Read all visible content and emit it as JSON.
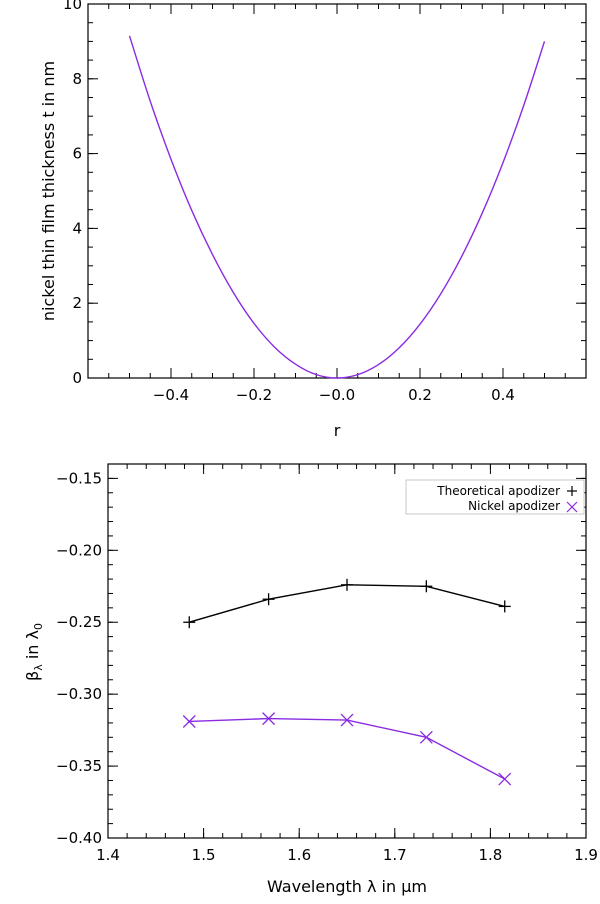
{
  "chart_data": [
    {
      "type": "line",
      "title": "",
      "xlabel": "r",
      "ylabel": "nickel thin film thickness t in nm",
      "xlim": [
        -0.6,
        0.6
      ],
      "ylim": [
        0,
        10
      ],
      "x_ticks": [
        -0.4,
        -0.2,
        0.0,
        0.2,
        0.4
      ],
      "x_tick_labels": [
        "−0.4",
        "−0.2",
        "−0.0",
        "0.2",
        "0.4"
      ],
      "y_ticks": [
        0,
        2,
        4,
        6,
        8,
        10
      ],
      "y_tick_labels": [
        "0",
        "2",
        "4",
        "6",
        "8",
        "10"
      ],
      "grid": false,
      "series": [
        {
          "color": "#8a2be2",
          "x": [
            -0.5,
            -0.45,
            -0.4,
            -0.35,
            -0.3,
            -0.25,
            -0.2,
            -0.15,
            -0.1,
            -0.05,
            0.0,
            0.05,
            0.1,
            0.15,
            0.2,
            0.25,
            0.3,
            0.35,
            0.4,
            0.45,
            0.5
          ],
          "y": [
            9.15,
            7.4,
            5.85,
            4.48,
            3.3,
            2.29,
            1.46,
            0.82,
            0.37,
            0.09,
            0.0,
            0.09,
            0.36,
            0.81,
            1.44,
            2.25,
            3.24,
            4.41,
            5.76,
            7.29,
            9.0
          ]
        }
      ]
    },
    {
      "type": "line",
      "title": "",
      "xlabel": "Wavelength λ in μm",
      "ylabel": "βλ in λ0",
      "ylabel_main": "β",
      "ylabel_sub1": "λ",
      "ylabel_mid": " in λ",
      "ylabel_sub2": "0",
      "xlim": [
        1.4,
        1.9
      ],
      "ylim": [
        -0.4,
        -0.14
      ],
      "x_ticks": [
        1.4,
        1.5,
        1.6,
        1.7,
        1.8,
        1.9
      ],
      "x_tick_labels": [
        "1.4",
        "1.5",
        "1.6",
        "1.7",
        "1.8",
        "1.9"
      ],
      "y_ticks": [
        -0.4,
        -0.35,
        -0.3,
        -0.25,
        -0.2,
        -0.15
      ],
      "y_tick_labels": [
        "−0.40",
        "−0.35",
        "−0.30",
        "−0.25",
        "−0.20",
        "−0.15"
      ],
      "grid": false,
      "legend_position": "top-right",
      "series": [
        {
          "name": "Theoretical apodizer",
          "color": "#000000",
          "marker": "plus",
          "x": [
            1.485,
            1.568,
            1.65,
            1.733,
            1.815
          ],
          "y": [
            -0.25,
            -0.234,
            -0.224,
            -0.225,
            -0.239
          ]
        },
        {
          "name": "Nickel apodizer",
          "color": "#8a2be2",
          "marker": "cross",
          "x": [
            1.485,
            1.568,
            1.65,
            1.733,
            1.815
          ],
          "y": [
            -0.319,
            -0.317,
            -0.318,
            -0.33,
            -0.359
          ]
        }
      ]
    }
  ]
}
